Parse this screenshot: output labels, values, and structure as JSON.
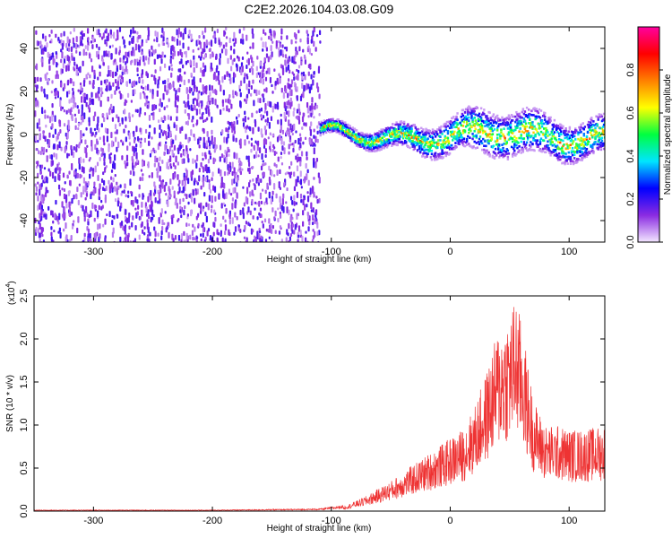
{
  "chart_data": [
    {
      "type": "heatmap",
      "title": "C2E2.2026.104.03.08.G09",
      "xlabel": "Height of straight line (km)",
      "ylabel": "Frequency (Hz)",
      "xlim": [
        -350,
        130
      ],
      "ylim": [
        -50,
        50
      ],
      "x_ticks": [
        -300,
        -200,
        -100,
        0,
        100
      ],
      "x_tick_labels": [
        "-300",
        "-200",
        "-100",
        "0",
        "100"
      ],
      "y_ticks": [
        -40,
        -20,
        0,
        20,
        40
      ],
      "y_tick_labels": [
        "-40",
        "-20",
        "0",
        "20",
        "40"
      ],
      "colorbar": {
        "label": "Normalized spectral amplitude",
        "range": [
          0,
          1
        ],
        "ticks": [
          0.0,
          0.2,
          0.4,
          0.6,
          0.8
        ],
        "tick_labels": [
          "0.0",
          "0.2",
          "0.4",
          "0.6",
          "0.8"
        ],
        "colors": [
          "#f3e6ff",
          "#8a2be2",
          "#0000ff",
          "#00e5ff",
          "#00ff40",
          "#ffff00",
          "#ff8000",
          "#ff0000",
          "#ff00a0"
        ]
      },
      "regions": [
        {
          "name": "broadband noise",
          "x_range": [
            -350,
            -110
          ],
          "amplitude": 0.15
        },
        {
          "name": "signal band",
          "x_range": [
            -110,
            130
          ],
          "center_freq": 0,
          "amplitude": 0.7
        }
      ]
    },
    {
      "type": "line",
      "title": "",
      "xlabel": "Height of straight line (km)",
      "ylabel": "SNR (10 * v/v)",
      "scale_label": "(x10",
      "scale_exp": "4",
      "scale_close": ")",
      "xlim": [
        -350,
        130
      ],
      "ylim": [
        0,
        2.5
      ],
      "x_ticks": [
        -300,
        -200,
        -100,
        0,
        100
      ],
      "x_tick_labels": [
        "-300",
        "-200",
        "-100",
        "0",
        "100"
      ],
      "y_ticks": [
        0.0,
        0.5,
        1.0,
        1.5,
        2.0,
        2.5
      ],
      "y_tick_labels": [
        "0.0",
        "0.5",
        "1.0",
        "1.5",
        "2.0",
        "2.5"
      ],
      "color": "#ee3333",
      "series": [
        {
          "name": "SNR envelope",
          "x": [
            -350,
            -200,
            -110,
            -90,
            -70,
            -50,
            -30,
            -10,
            0,
            10,
            20,
            30,
            40,
            50,
            55,
            60,
            70,
            80,
            90,
            100,
            110,
            120,
            130
          ],
          "y": [
            0.01,
            0.01,
            0.02,
            0.05,
            0.18,
            0.35,
            0.55,
            0.75,
            0.85,
            0.95,
            1.2,
            1.6,
            2.1,
            2.3,
            2.5,
            2.2,
            1.3,
            1.0,
            1.0,
            0.95,
            0.95,
            0.97,
            1.0
          ]
        }
      ]
    }
  ]
}
